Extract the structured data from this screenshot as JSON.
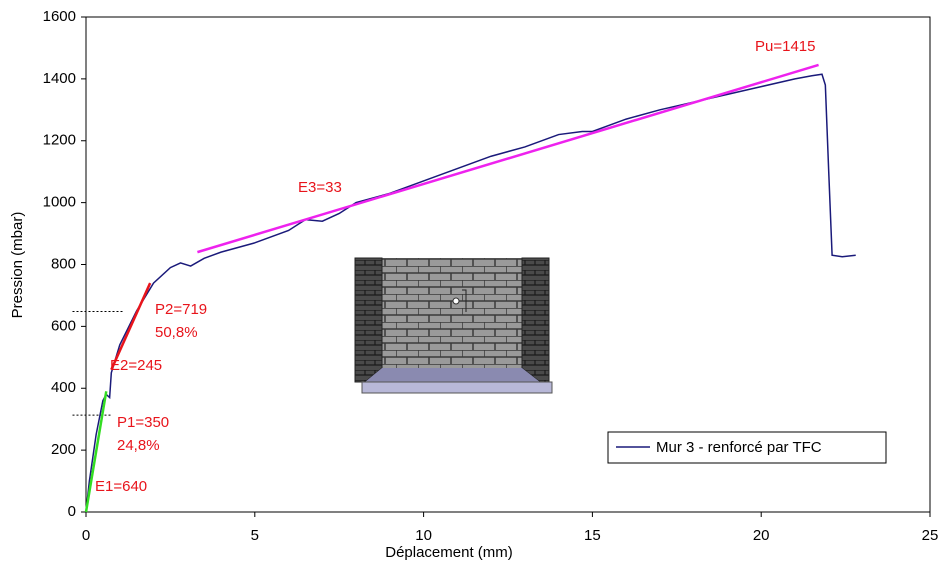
{
  "chart_data": {
    "type": "line",
    "x_label": "Déplacement (mm)",
    "y_label": "Pression (mbar)",
    "xlim": [
      0,
      25
    ],
    "xticks": [
      0,
      5,
      10,
      15,
      20,
      25
    ],
    "ylim": [
      0,
      1600
    ],
    "yticks": [
      0,
      200,
      400,
      600,
      800,
      1000,
      1200,
      1400,
      1600
    ],
    "legend_position": "lower right",
    "series": [
      {
        "name": "Mur 3 - renforcé par TFC",
        "color": "#1a1a7a",
        "x": [
          0,
          0.1,
          0.3,
          0.5,
          0.6,
          0.7,
          0.75,
          1,
          1.5,
          2,
          2.5,
          2.8,
          3.1,
          3.5,
          4,
          5,
          6,
          6.5,
          7,
          7.5,
          8,
          9,
          10,
          11,
          12,
          13,
          14,
          14.7,
          15,
          16,
          17,
          18,
          19,
          20,
          21,
          21.5,
          21.8,
          21.9,
          22,
          22.1,
          22.4,
          22.8
        ],
        "values": [
          0,
          100,
          250,
          360,
          380,
          370,
          450,
          540,
          650,
          740,
          790,
          805,
          795,
          820,
          840,
          870,
          910,
          945,
          940,
          965,
          1000,
          1030,
          1070,
          1110,
          1150,
          1180,
          1220,
          1230,
          1230,
          1270,
          1300,
          1325,
          1350,
          1375,
          1400,
          1410,
          1415,
          1380,
          1100,
          830,
          825,
          830
        ]
      }
    ],
    "fit_lines": [
      {
        "color": "#33dd22",
        "x": [
          0,
          0.6
        ],
        "values": [
          0,
          390
        ]
      },
      {
        "color": "#e8141b",
        "x": [
          0.75,
          1.9
        ],
        "values": [
          460,
          740
        ]
      },
      {
        "color": "#ee22ee",
        "x": [
          3.3,
          21.7
        ],
        "values": [
          840,
          1445
        ]
      }
    ],
    "reference_lines": [
      {
        "x": [
          -0.4,
          1.1
        ],
        "values": [
          648,
          648
        ]
      },
      {
        "x": [
          -0.4,
          0.75
        ],
        "values": [
          313,
          313
        ]
      }
    ],
    "annotations": [
      "Pu=1415",
      "E3=33",
      "P2=719",
      "50,8%",
      "E2=245",
      "P1=350",
      "24,8%",
      "E1=640"
    ]
  }
}
